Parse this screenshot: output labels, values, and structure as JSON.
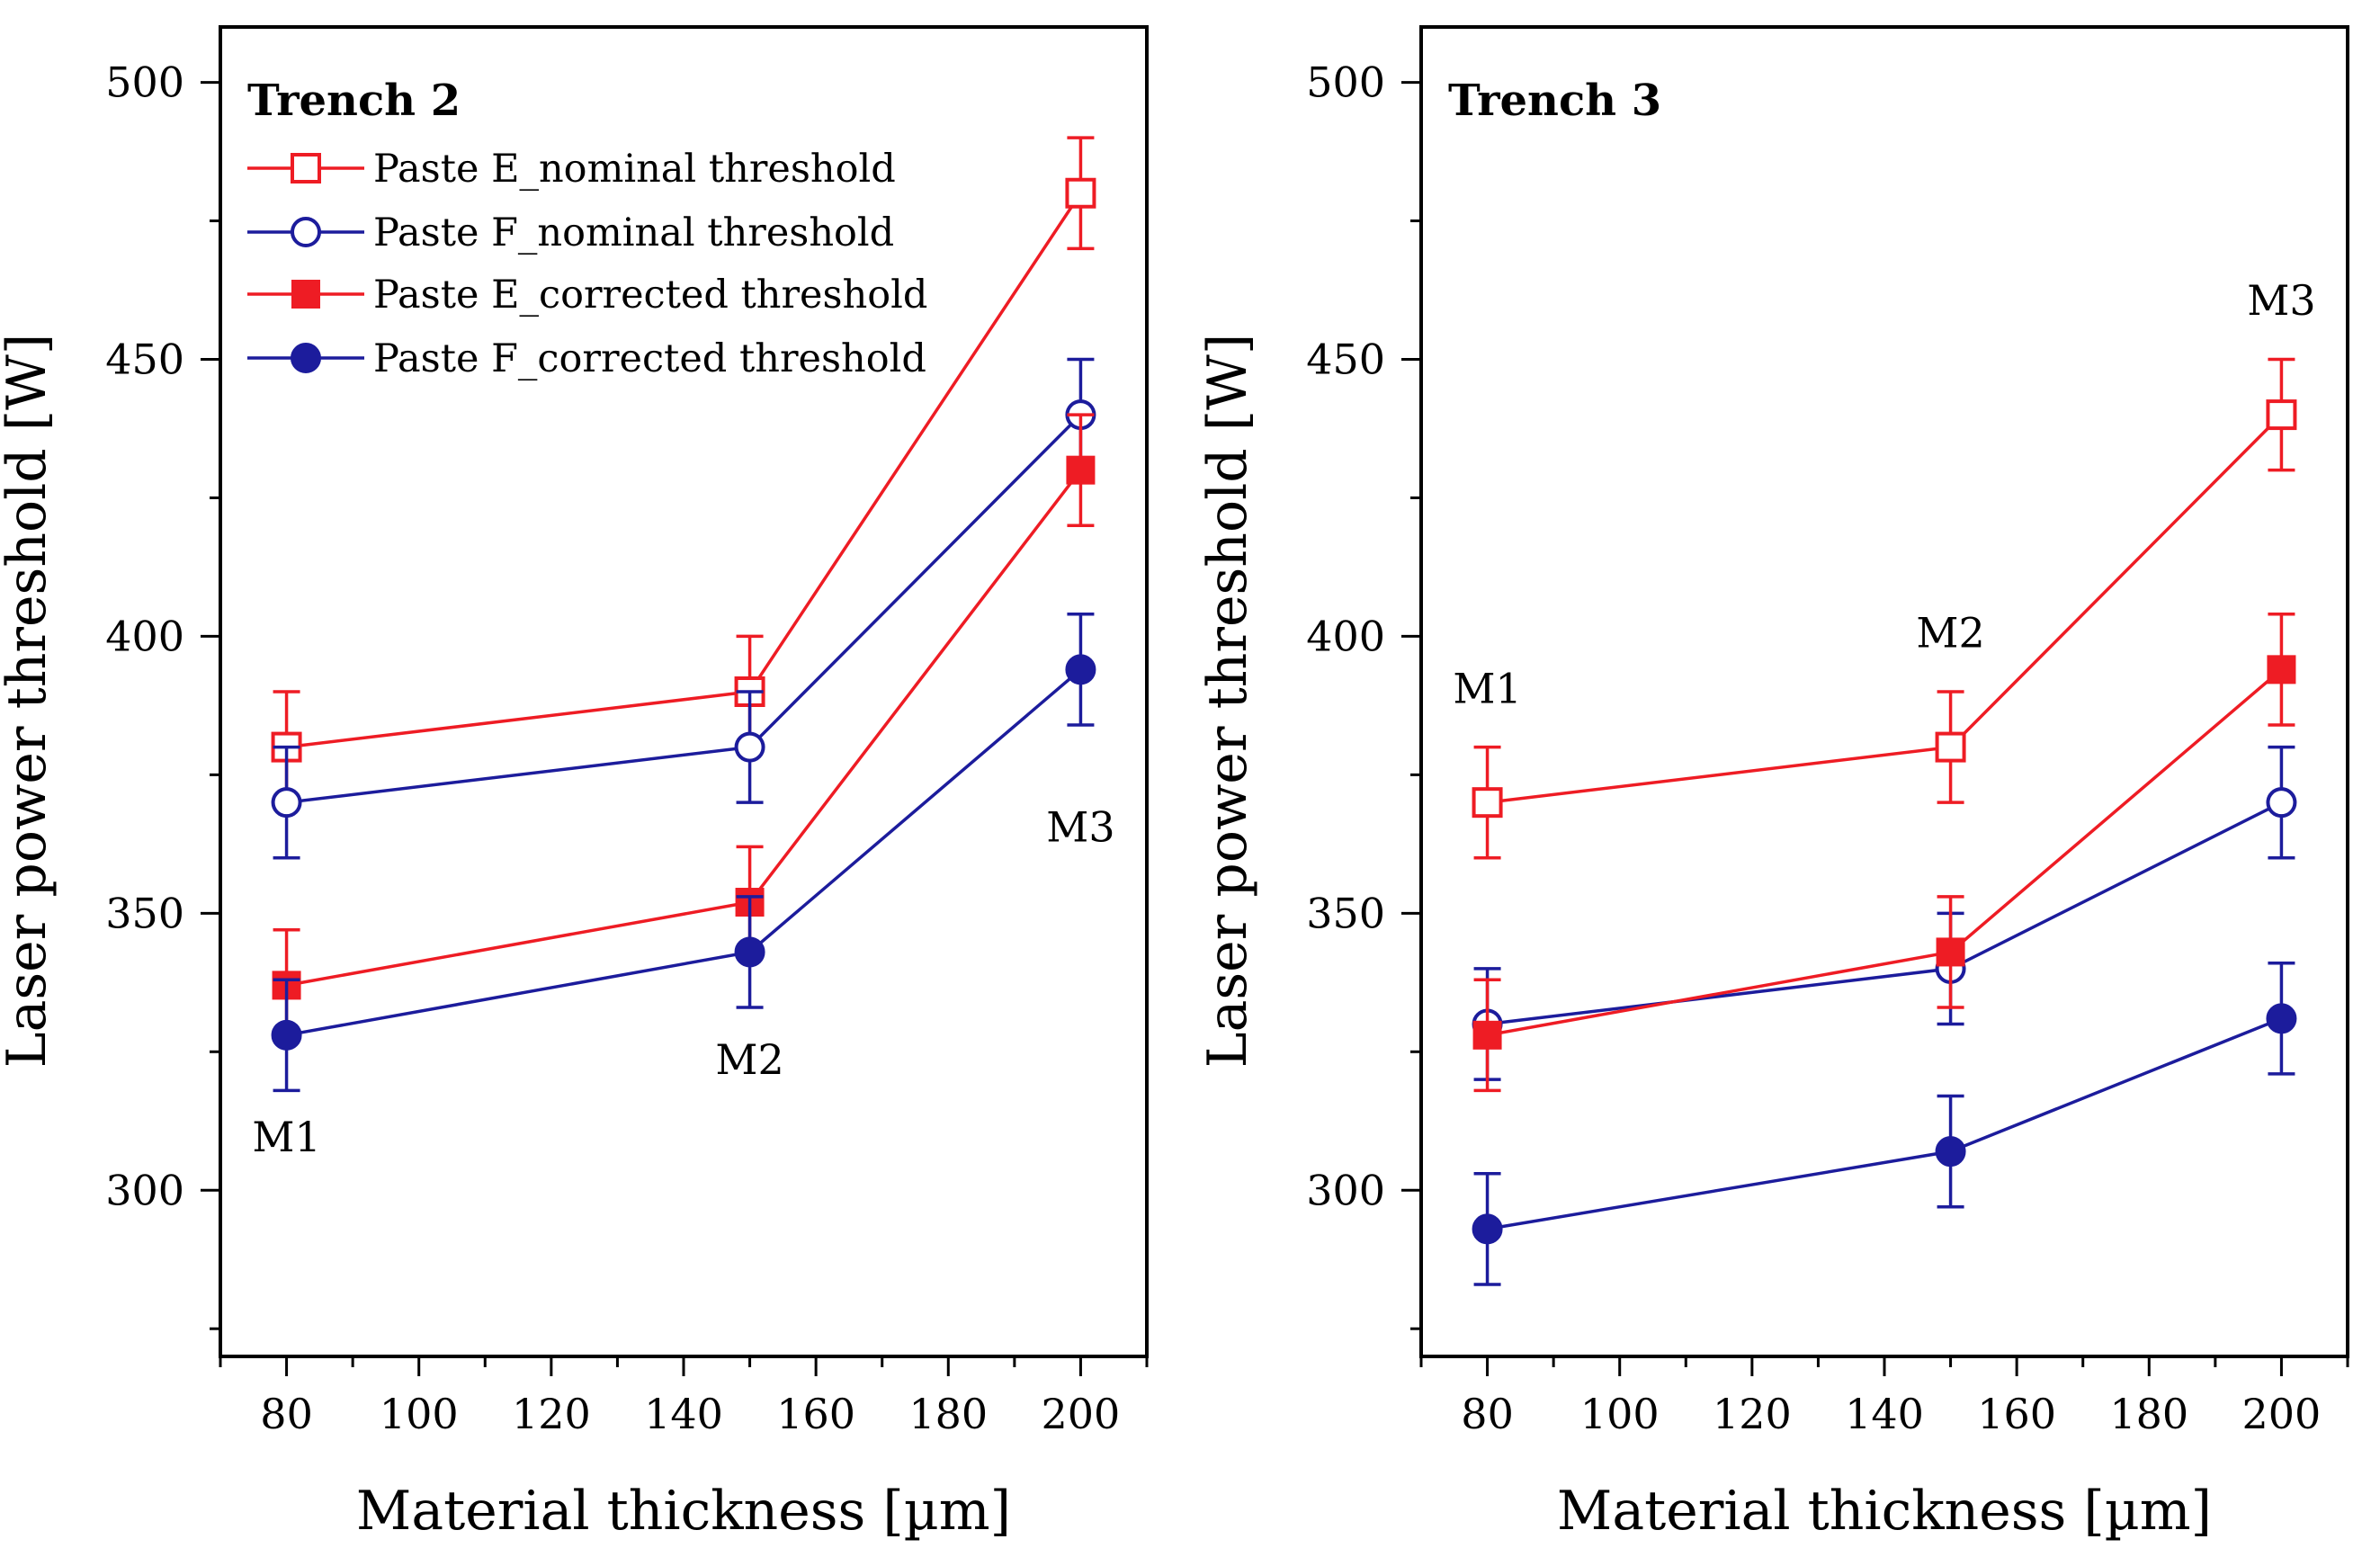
{
  "chart_data": [
    {
      "type": "line",
      "title": "Trench 2",
      "xlabel": "Material thickness [µm]",
      "ylabel": "Laser power threshold [W]",
      "xlim": [
        70,
        210
      ],
      "ylim": [
        270,
        510
      ],
      "xticks": [
        80,
        100,
        120,
        140,
        160,
        180,
        200
      ],
      "yticks": [
        300,
        350,
        400,
        450,
        500
      ],
      "x": [
        80,
        150,
        200
      ],
      "legend_position": "top-left",
      "series": [
        {
          "name": "Paste E_nominal threshold",
          "color": "#ee1c24",
          "marker": "open-square",
          "values": [
            380,
            390,
            480
          ],
          "errors": [
            10,
            10,
            10
          ]
        },
        {
          "name": "Paste F_nominal threshold",
          "color": "#1c1c9c",
          "marker": "open-circle",
          "values": [
            370,
            380,
            440
          ],
          "errors": [
            10,
            10,
            10
          ]
        },
        {
          "name": "Paste E_corrected threshold",
          "color": "#ee1c24",
          "marker": "filled-square",
          "values": [
            337,
            352,
            430
          ],
          "errors": [
            10,
            10,
            10
          ]
        },
        {
          "name": "Paste F_corrected threshold",
          "color": "#1c1c9c",
          "marker": "filled-circle",
          "values": [
            328,
            343,
            394
          ],
          "errors": [
            10,
            10,
            10
          ]
        }
      ],
      "annotations": [
        {
          "text": "M1",
          "x": 80,
          "y": 307
        },
        {
          "text": "M2",
          "x": 150,
          "y": 321
        },
        {
          "text": "M3",
          "x": 200,
          "y": 363
        }
      ]
    },
    {
      "type": "line",
      "title": "Trench 3",
      "xlabel": "Material thickness [µm]",
      "ylabel": "Laser power threshold [W]",
      "xlim": [
        70,
        210
      ],
      "ylim": [
        270,
        510
      ],
      "xticks": [
        80,
        100,
        120,
        140,
        160,
        180,
        200
      ],
      "yticks": [
        300,
        350,
        400,
        450,
        500
      ],
      "x": [
        80,
        150,
        200
      ],
      "series": [
        {
          "name": "Paste E_nominal threshold",
          "color": "#ee1c24",
          "marker": "open-square",
          "values": [
            370,
            380,
            440
          ],
          "errors": [
            10,
            10,
            10
          ]
        },
        {
          "name": "Paste F_nominal threshold",
          "color": "#1c1c9c",
          "marker": "open-circle",
          "values": [
            330,
            340,
            370
          ],
          "errors": [
            10,
            10,
            10
          ]
        },
        {
          "name": "Paste E_corrected threshold",
          "color": "#ee1c24",
          "marker": "filled-square",
          "values": [
            328,
            343,
            394
          ],
          "errors": [
            10,
            10,
            10
          ]
        },
        {
          "name": "Paste F_corrected threshold",
          "color": "#1c1c9c",
          "marker": "filled-circle",
          "values": [
            293,
            307,
            331
          ],
          "errors": [
            10,
            10,
            10
          ]
        }
      ],
      "annotations": [
        {
          "text": "M1",
          "x": 80,
          "y": 388
        },
        {
          "text": "M2",
          "x": 150,
          "y": 398
        },
        {
          "text": "M3",
          "x": 200,
          "y": 458
        }
      ]
    }
  ]
}
